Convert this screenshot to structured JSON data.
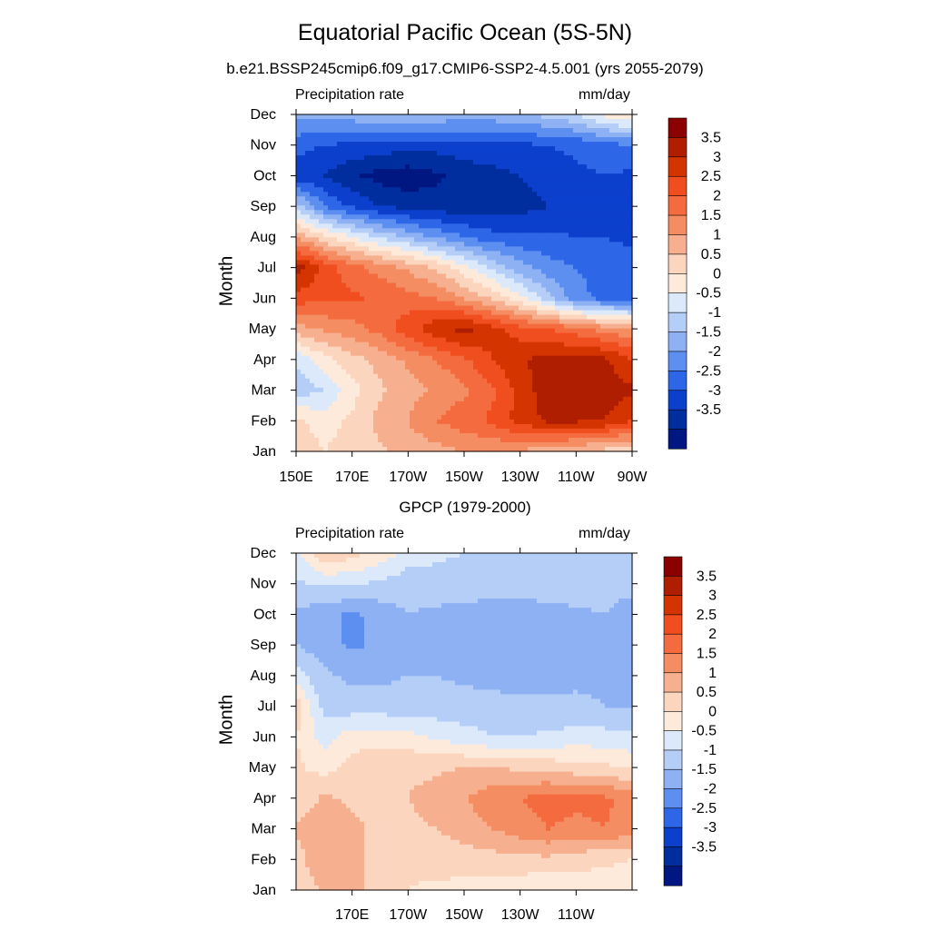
{
  "header": {
    "title": "Equatorial Pacific Ocean (5S-5N)",
    "subtitle": "b.e21.BSSP245cmip6.f09_g17.CMIP6-SSP2-4.5.001 (yrs 2055-2079)",
    "lower_title": "GPCP (1979-2000)"
  },
  "colorbar": {
    "labels": [
      "3.5",
      "3",
      "2.5",
      "2",
      "1.5",
      "1",
      "0.5",
      "0",
      "-0.5",
      "-1",
      "-1.5",
      "-2",
      "-2.5",
      "-3",
      "-3.5"
    ],
    "colors": [
      "#8b0000",
      "#b01e00",
      "#d43500",
      "#f04e1e",
      "#f46b3f",
      "#f58d62",
      "#f7b08f",
      "#fbd5bd",
      "#fdeadb",
      "#dbe9fb",
      "#b5cef7",
      "#8eb1f4",
      "#5d8ff0",
      "#2e66e8",
      "#0b3fcc",
      "#002e9e",
      "#001680"
    ]
  },
  "chart_data": [
    {
      "type": "heatmap",
      "title": "",
      "left_label": "Precipitation rate",
      "right_label": "mm/day",
      "ylabel": "Month",
      "months": [
        "Jan",
        "Feb",
        "Mar",
        "Apr",
        "May",
        "Jun",
        "Jul",
        "Aug",
        "Sep",
        "Oct",
        "Nov",
        "Dec"
      ],
      "xticks": [
        "150E",
        "170E",
        "170W",
        "150W",
        "130W",
        "110W",
        "90W"
      ],
      "xlim": [
        150,
        270
      ],
      "lon": [
        150,
        160,
        170,
        180,
        190,
        200,
        210,
        220,
        230,
        240,
        250,
        260,
        270
      ],
      "values": [
        [
          0.8,
          0.5,
          0.7,
          0.9,
          1.2,
          1.3,
          1.5,
          1.6,
          1.4,
          1.2,
          1.0,
          0.8,
          0.6
        ],
        [
          0.6,
          0.3,
          0.6,
          1.2,
          1.5,
          2.0,
          2.3,
          2.6,
          3.2,
          3.6,
          3.6,
          3.5,
          3.0
        ],
        [
          -0.8,
          -0.5,
          0.3,
          0.9,
          1.3,
          1.6,
          1.9,
          2.4,
          3.2,
          3.8,
          3.9,
          3.8,
          3.6
        ],
        [
          -0.4,
          0.3,
          0.8,
          1.2,
          1.6,
          2.0,
          2.4,
          3.0,
          3.5,
          3.6,
          3.7,
          3.6,
          3.0
        ],
        [
          1.3,
          1.6,
          1.8,
          2.2,
          2.8,
          3.4,
          3.7,
          3.2,
          2.7,
          2.5,
          2.2,
          1.8,
          1.5
        ],
        [
          2.8,
          2.6,
          2.6,
          2.4,
          2.2,
          2.0,
          1.5,
          0.9,
          0.2,
          -0.8,
          -1.8,
          -2.2,
          -2.3
        ],
        [
          3.8,
          2.8,
          2.2,
          1.8,
          1.4,
          0.9,
          0.2,
          -0.6,
          -1.3,
          -1.8,
          -2.0,
          -2.2,
          -2.3
        ],
        [
          1.5,
          0.6,
          0.0,
          -0.6,
          -1.1,
          -1.6,
          -2.0,
          -2.3,
          -2.4,
          -2.4,
          -2.5,
          -2.5,
          -2.6
        ],
        [
          -0.7,
          -2.0,
          -2.6,
          -3.0,
          -3.2,
          -3.3,
          -3.3,
          -3.3,
          -3.2,
          -3.0,
          -2.8,
          -2.7,
          -3.0
        ],
        [
          -2.8,
          -3.0,
          -3.4,
          -3.7,
          -3.8,
          -3.6,
          -3.3,
          -3.2,
          -3.0,
          -2.8,
          -2.6,
          -2.5,
          -2.6
        ],
        [
          -2.3,
          -2.5,
          -2.6,
          -2.7,
          -2.8,
          -2.8,
          -2.7,
          -2.6,
          -2.6,
          -2.5,
          -2.4,
          -2.2,
          -2.0
        ],
        [
          -1.3,
          -1.4,
          -1.2,
          -1.0,
          -1.0,
          -1.1,
          -1.2,
          -1.2,
          -1.1,
          -0.8,
          -0.5,
          0.2,
          0.6
        ]
      ]
    },
    {
      "type": "heatmap",
      "title": "GPCP (1979-2000)",
      "left_label": "Precipitation rate",
      "right_label": "mm/day",
      "ylabel": "Month",
      "months": [
        "Jan",
        "Feb",
        "Mar",
        "Apr",
        "May",
        "Jun",
        "Jul",
        "Aug",
        "Sep",
        "Oct",
        "Nov",
        "Dec"
      ],
      "xticks": [
        "170E",
        "170W",
        "150W",
        "130W",
        "110W"
      ],
      "xlim": [
        150,
        270
      ],
      "lon": [
        150,
        160,
        170,
        180,
        190,
        200,
        210,
        220,
        230,
        240,
        250,
        260,
        270
      ],
      "values": [
        [
          0.8,
          1.0,
          1.3,
          0.7,
          0.5,
          0.4,
          0.3,
          0.3,
          0.2,
          0.0,
          0.2,
          0.2,
          0.2
        ],
        [
          0.8,
          1.4,
          1.2,
          0.8,
          0.6,
          0.7,
          0.8,
          0.8,
          0.8,
          0.9,
          0.7,
          0.6,
          0.5
        ],
        [
          1.1,
          1.3,
          1.1,
          0.9,
          0.9,
          1.0,
          1.2,
          1.5,
          1.8,
          2.0,
          1.9,
          2.0,
          1.8
        ],
        [
          0.6,
          1.1,
          0.9,
          0.8,
          1.0,
          1.2,
          1.5,
          1.8,
          2.0,
          2.2,
          2.1,
          2.1,
          1.8
        ],
        [
          0.6,
          0.3,
          0.7,
          0.8,
          0.9,
          0.9,
          1.0,
          1.0,
          0.9,
          0.8,
          0.7,
          0.6,
          0.4
        ],
        [
          0.5,
          -0.2,
          0.3,
          0.3,
          0.2,
          -0.1,
          -0.3,
          -0.5,
          -0.5,
          -0.4,
          -0.3,
          -0.3,
          -0.4
        ],
        [
          0.8,
          -0.7,
          -0.8,
          -0.8,
          -0.8,
          -0.8,
          -0.8,
          -0.8,
          -0.9,
          -0.9,
          -0.9,
          -1.0,
          -1.0
        ],
        [
          -0.3,
          -0.9,
          -1.1,
          -1.1,
          -1.0,
          -1.0,
          -1.1,
          -1.2,
          -1.2,
          -1.2,
          -1.1,
          -1.1,
          -1.2
        ],
        [
          -1.0,
          -1.3,
          -1.6,
          -1.4,
          -1.1,
          -1.2,
          -1.3,
          -1.4,
          -1.5,
          -1.3,
          -1.1,
          -1.1,
          -1.3
        ],
        [
          -1.1,
          -1.3,
          -1.6,
          -1.3,
          -1.0,
          -1.1,
          -1.2,
          -1.2,
          -1.2,
          -1.2,
          -1.1,
          -1.0,
          -1.3
        ],
        [
          -0.6,
          -0.4,
          -0.4,
          -0.6,
          -0.8,
          -0.7,
          -0.7,
          -0.8,
          -0.8,
          -0.7,
          -0.7,
          -0.8,
          -0.8
        ],
        [
          -0.2,
          0.9,
          0.7,
          0.3,
          -0.2,
          -0.4,
          -0.5,
          -0.6,
          -0.6,
          -0.6,
          -0.6,
          -0.7,
          -0.7
        ]
      ]
    }
  ]
}
